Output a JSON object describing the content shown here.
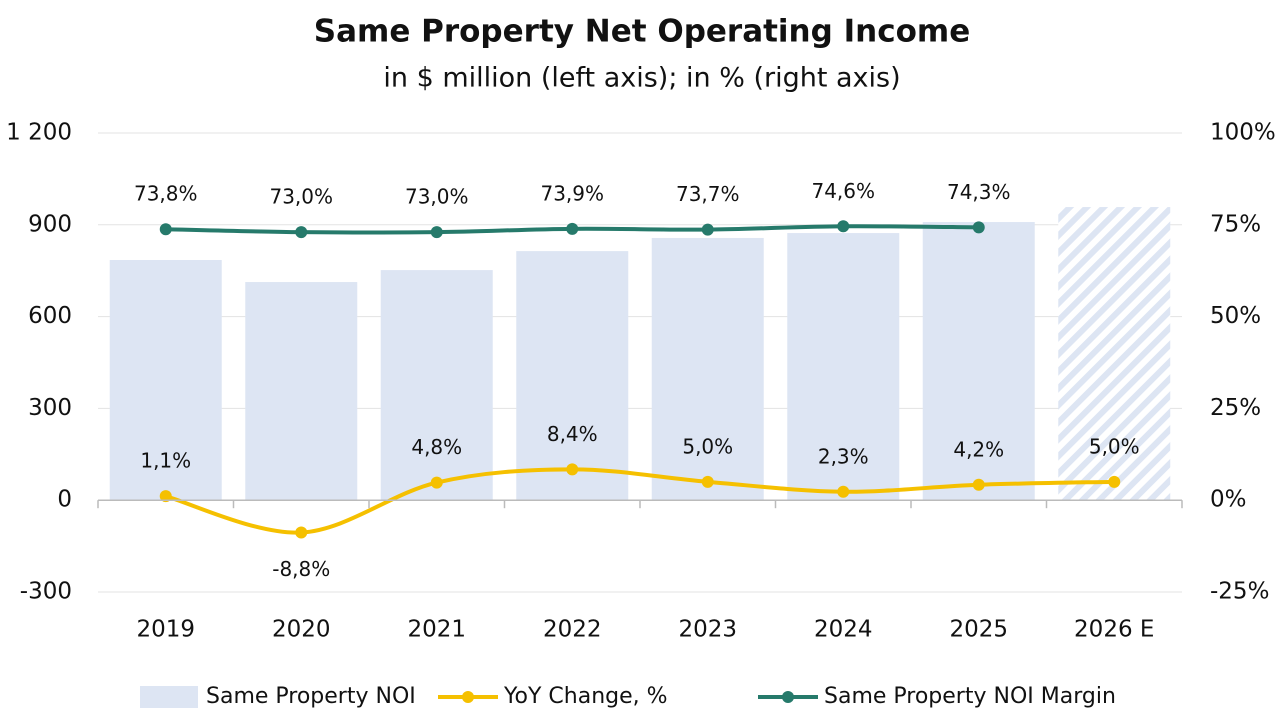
{
  "chart_data": {
    "type": "bar",
    "title": "Same Property Net Operating Income",
    "subtitle": "in $ million (left axis); in % (right axis)",
    "categories": [
      "2019",
      "2020",
      "2021",
      "2022",
      "2023",
      "2024",
      "2025",
      "2026 E"
    ],
    "series": [
      {
        "name": "Same Property NOI",
        "type": "bar",
        "color": "#dde5f3",
        "values": [
          785,
          713,
          752,
          814,
          857,
          873,
          909,
          958
        ],
        "hatched": [
          false,
          false,
          false,
          false,
          false,
          false,
          false,
          true
        ]
      },
      {
        "name": "YoY Change, %",
        "type": "line",
        "axis": "y2",
        "color": "#f5c000",
        "values": [
          1.1,
          -8.8,
          4.8,
          8.4,
          5.0,
          2.3,
          4.2,
          5.0
        ],
        "value_labels": [
          "1,1%",
          "-8,8%",
          "4,8%",
          "8,4%",
          "5,0%",
          "2,3%",
          "4,2%",
          "5,0%"
        ]
      },
      {
        "name": "Same Property NOI Margin",
        "type": "line",
        "axis": "y2",
        "color": "#267a6b",
        "values": [
          73.8,
          73.0,
          73.0,
          73.9,
          73.7,
          74.6,
          74.3,
          null
        ],
        "value_labels": [
          "73,8%",
          "73,0%",
          "73,0%",
          "73,9%",
          "73,7%",
          "74,6%",
          "74,3%",
          null
        ]
      }
    ],
    "ylim": [
      -300,
      1200
    ],
    "yticks": [
      -300,
      0,
      300,
      600,
      900,
      {
        "value": 1200,
        "label": "1 200"
      }
    ],
    "y2lim": [
      -25,
      100
    ],
    "y2ticks": [
      {
        "value": -25,
        "label": "-25%"
      },
      {
        "value": 0,
        "label": "0%"
      },
      {
        "value": 25,
        "label": "25%"
      },
      {
        "value": 50,
        "label": "50%"
      },
      {
        "value": 75,
        "label": "75%"
      },
      {
        "value": 100,
        "label": "100%"
      }
    ],
    "grid": true,
    "legend": "bottom"
  }
}
